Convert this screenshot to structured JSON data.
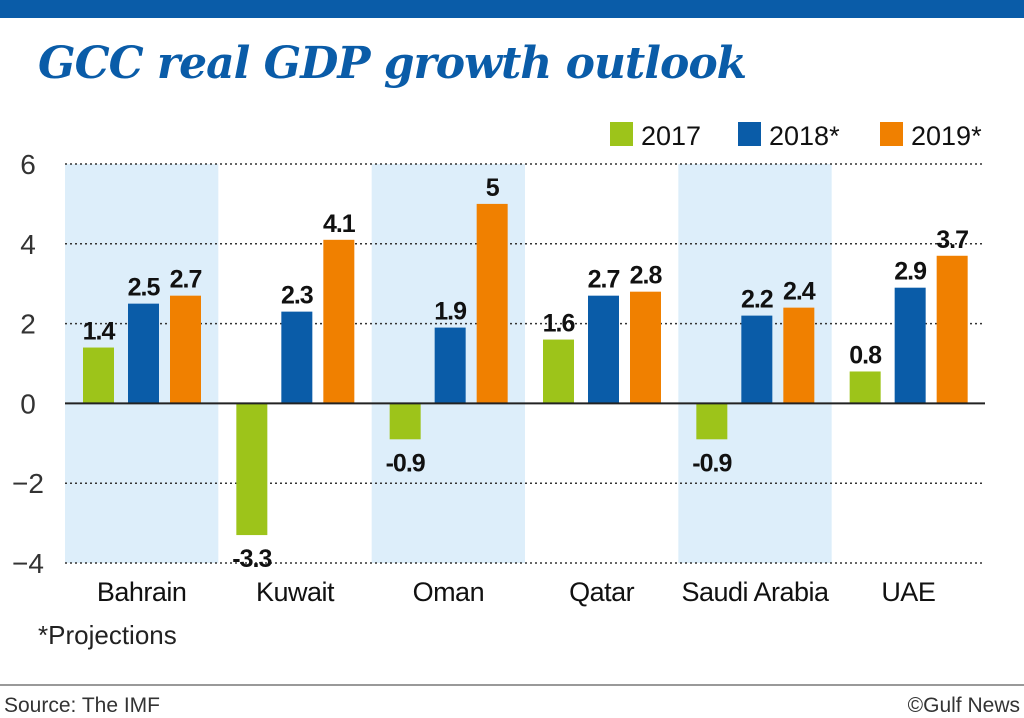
{
  "chart_data": {
    "type": "bar",
    "title": "GCC real GDP growth outlook",
    "categories": [
      "Bahrain",
      "Kuwait",
      "Oman",
      "Qatar",
      "Saudi Arabia",
      "UAE"
    ],
    "series": [
      {
        "name": "2017",
        "color": "#9dc41a",
        "values": [
          1.4,
          -3.3,
          -0.9,
          1.6,
          -0.9,
          0.8
        ]
      },
      {
        "name": "2018*",
        "color": "#0a5ca8",
        "values": [
          2.5,
          2.3,
          1.9,
          2.7,
          2.2,
          2.9
        ]
      },
      {
        "name": "2019*",
        "color": "#f08000",
        "values": [
          2.7,
          4.1,
          5,
          2.8,
          2.4,
          3.7
        ]
      }
    ],
    "yticks": [
      "6",
      "4",
      "2",
      "0",
      "-2",
      "-4"
    ],
    "ylim": [
      -4,
      6
    ],
    "grid": true,
    "legend": "top-right",
    "band_color": "#ddeefa",
    "note": "*Projections",
    "source": "Source: The IMF",
    "credit": "©Gulf News"
  }
}
